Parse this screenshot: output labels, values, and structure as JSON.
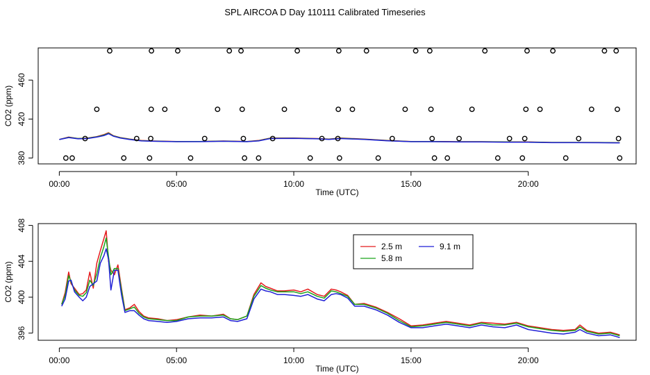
{
  "title": "SPL AIRCOA D  Day 110111  Calibrated Timeseries",
  "chart_data": [
    {
      "type": "line",
      "panel": "top",
      "xlabel": "Time (UTC)",
      "ylabel": "CO2 (ppm)",
      "xlim": [
        -0.9,
        24.6
      ],
      "ylim": [
        374,
        493
      ],
      "xticks": [
        0,
        5,
        10,
        15,
        20
      ],
      "xtick_labels": [
        "00:00",
        "05:00",
        "10:00",
        "15:00",
        "20:00"
      ],
      "yticks": [
        380,
        420,
        460
      ],
      "ytick_labels": [
        "380",
        "420",
        "460"
      ],
      "series": [
        {
          "name": "2.5 m",
          "color": "#e41a1c",
          "x": [
            0,
            0.4,
            0.8,
            1.2,
            1.6,
            1.9,
            2.1,
            2.3,
            2.6,
            3,
            3.5,
            4,
            5,
            6,
            7,
            8,
            8.5,
            9,
            10,
            11,
            11.5,
            12,
            13,
            14,
            15,
            16,
            17,
            18,
            19,
            20,
            21,
            22,
            23,
            23.9
          ],
          "y": [
            399,
            401.5,
            400,
            400.5,
            402,
            404,
            406,
            403,
            401,
            399.5,
            398,
            397.5,
            397,
            397,
            397.5,
            397,
            398,
            400.5,
            400.5,
            400,
            399.5,
            400.5,
            399.5,
            398,
            397,
            397,
            396.8,
            396.8,
            396.6,
            396.5,
            396,
            396,
            396,
            395.7
          ]
        },
        {
          "name": "5.8 m",
          "color": "#1aa31a",
          "x": [
            0,
            0.4,
            0.8,
            1.2,
            1.6,
            1.9,
            2.1,
            2.3,
            2.6,
            3,
            3.5,
            4,
            5,
            6,
            7,
            8,
            8.5,
            9,
            10,
            11,
            11.5,
            12,
            13,
            14,
            15,
            16,
            17,
            18,
            19,
            20,
            21,
            22,
            23,
            23.9
          ],
          "y": [
            399,
            401.3,
            400,
            400.3,
            401.8,
            403.5,
            405.5,
            402.8,
            400.8,
            399.3,
            397.8,
            397.4,
            396.9,
            397,
            397.4,
            396.9,
            397.8,
            400.3,
            400.4,
            399.9,
            399.3,
            400.3,
            399.3,
            397.9,
            396.9,
            396.9,
            396.7,
            396.7,
            396.5,
            396.4,
            396,
            396,
            395.9,
            395.7
          ]
        },
        {
          "name": "9.1 m",
          "color": "#1f1fd6",
          "x": [
            0,
            0.4,
            0.8,
            1.2,
            1.6,
            1.9,
            2.1,
            2.3,
            2.6,
            3,
            3.5,
            4,
            5,
            6,
            7,
            8,
            8.5,
            9,
            10,
            11,
            11.5,
            12,
            13,
            14,
            15,
            16,
            17,
            18,
            19,
            20,
            21,
            22,
            23,
            23.9
          ],
          "y": [
            399,
            401,
            399.7,
            400,
            401.5,
            403,
            405,
            402.5,
            400.5,
            399,
            397.6,
            397.2,
            396.8,
            396.8,
            397.2,
            396.8,
            397.6,
            400,
            400.2,
            399.7,
            399.1,
            400,
            399.1,
            397.7,
            396.8,
            396.8,
            396.5,
            396.5,
            396.3,
            396.2,
            395.8,
            395.8,
            395.7,
            395.5
          ]
        }
      ],
      "calibration_points": {
        "x": [
          0.28,
          0.55,
          1.1,
          1.6,
          2.15,
          2.75,
          3.3,
          3.85,
          3.9,
          3.92,
          3.93,
          4.5,
          5.05,
          5.6,
          6.2,
          6.75,
          7.25,
          7.75,
          7.8,
          7.85,
          7.9,
          8.5,
          9.1,
          9.6,
          10.15,
          10.7,
          11.2,
          11.88,
          11.9,
          11.92,
          11.95,
          12.5,
          13.1,
          13.6,
          14.2,
          14.75,
          15.2,
          15.8,
          15.85,
          15.9,
          16.0,
          16.55,
          17.05,
          17.6,
          18.15,
          18.7,
          19.2,
          19.75,
          19.85,
          19.9,
          19.95,
          20.5,
          21.05,
          21.6,
          22.15,
          22.7,
          23.25,
          23.75,
          23.8,
          23.85,
          23.9
        ],
        "y": [
          380,
          380,
          400,
          430,
          490,
          380,
          400,
          380,
          400,
          430,
          490,
          430,
          490,
          380,
          400,
          430,
          490,
          490,
          430,
          400,
          380,
          380,
          400,
          430,
          490,
          380,
          400,
          400,
          430,
          490,
          380,
          430,
          490,
          380,
          400,
          430,
          490,
          490,
          430,
          400,
          380,
          380,
          400,
          430,
          490,
          380,
          400,
          380,
          400,
          430,
          490,
          430,
          490,
          380,
          400,
          430,
          490,
          490,
          430,
          400,
          380
        ]
      }
    },
    {
      "type": "line",
      "panel": "bottom",
      "xlabel": "Time (UTC)",
      "ylabel": "CO2 (ppm)",
      "xlim": [
        -0.9,
        24.6
      ],
      "ylim": [
        395.2,
        408.2
      ],
      "xticks": [
        0,
        5,
        10,
        15,
        20
      ],
      "xtick_labels": [
        "00:00",
        "05:00",
        "10:00",
        "15:00",
        "20:00"
      ],
      "yticks": [
        396,
        400,
        404,
        408
      ],
      "ytick_labels": [
        "396",
        "400",
        "404",
        "408"
      ],
      "legend": {
        "position": "top-center",
        "entries": [
          "2.5 m",
          "5.8 m",
          "9.1 m"
        ]
      },
      "series": [
        {
          "name": "2.5 m",
          "color": "#e41a1c",
          "x": [
            0.1,
            0.25,
            0.4,
            0.5,
            0.65,
            0.85,
            1.0,
            1.15,
            1.3,
            1.45,
            1.6,
            1.75,
            1.9,
            2.0,
            2.1,
            2.2,
            2.35,
            2.5,
            2.65,
            2.8,
            3.0,
            3.2,
            3.4,
            3.6,
            3.8,
            4.2,
            4.6,
            5.0,
            5.5,
            6.0,
            6.5,
            7.0,
            7.3,
            7.6,
            8.0,
            8.3,
            8.6,
            8.8,
            9.0,
            9.3,
            9.6,
            10.0,
            10.3,
            10.6,
            11.0,
            11.3,
            11.6,
            11.8,
            12.0,
            12.3,
            12.6,
            13.0,
            13.5,
            14.0,
            14.5,
            15.0,
            15.5,
            16.0,
            16.5,
            17.0,
            17.5,
            18.0,
            18.5,
            19.0,
            19.5,
            20.0,
            20.5,
            21.0,
            21.5,
            22.0,
            22.2,
            22.5,
            23.0,
            23.5,
            23.9
          ],
          "y": [
            399.2,
            400.5,
            402.8,
            401.5,
            401,
            400.3,
            400.4,
            400.8,
            402.8,
            401,
            403.8,
            405.2,
            406.5,
            407.4,
            404,
            403,
            402.5,
            403.6,
            401,
            398.6,
            398.8,
            399.2,
            398.4,
            397.9,
            397.7,
            397.6,
            397.4,
            397.5,
            397.8,
            398,
            397.9,
            398.1,
            397.6,
            397.5,
            397.9,
            400.3,
            401.6,
            401.2,
            401,
            400.7,
            400.7,
            400.8,
            400.6,
            400.9,
            400.3,
            400.1,
            400.9,
            400.8,
            400.6,
            400.2,
            399.2,
            399.3,
            398.9,
            398.3,
            397.6,
            396.8,
            396.9,
            397.1,
            397.3,
            397.1,
            396.9,
            397.2,
            397.1,
            397.0,
            397.2,
            396.8,
            396.6,
            396.4,
            396.3,
            396.4,
            396.9,
            396.3,
            396.0,
            396.1,
            395.8
          ]
        },
        {
          "name": "5.8 m",
          "color": "#1aa31a",
          "x": [
            0.1,
            0.25,
            0.4,
            0.5,
            0.65,
            0.85,
            1.0,
            1.15,
            1.3,
            1.45,
            1.6,
            1.75,
            1.9,
            2.0,
            2.1,
            2.2,
            2.35,
            2.5,
            2.65,
            2.8,
            3.0,
            3.2,
            3.4,
            3.6,
            3.8,
            4.2,
            4.6,
            5.0,
            5.5,
            6.0,
            6.5,
            7.0,
            7.3,
            7.6,
            8.0,
            8.3,
            8.6,
            8.8,
            9.0,
            9.3,
            9.6,
            10.0,
            10.3,
            10.6,
            11.0,
            11.3,
            11.6,
            11.8,
            12.0,
            12.3,
            12.6,
            13.0,
            13.5,
            14.0,
            14.5,
            15.0,
            15.5,
            16.0,
            16.5,
            17.0,
            17.5,
            18.0,
            18.5,
            19.0,
            19.5,
            20.0,
            20.5,
            21.0,
            21.5,
            22.0,
            22.2,
            22.5,
            23.0,
            23.5,
            23.9
          ],
          "y": [
            399.2,
            400.2,
            402.4,
            401.7,
            400.8,
            400.2,
            400.1,
            400.5,
            401.9,
            401.3,
            402.6,
            404.4,
            405.6,
            406.6,
            404.5,
            402.5,
            403.2,
            403.2,
            400.8,
            398.5,
            398.7,
            398.9,
            398.2,
            397.8,
            397.6,
            397.5,
            397.4,
            397.4,
            397.8,
            397.9,
            397.9,
            398.0,
            397.6,
            397.5,
            397.9,
            400.1,
            401.3,
            401.0,
            400.8,
            400.6,
            400.6,
            400.6,
            400.4,
            400.6,
            400.1,
            399.9,
            400.7,
            400.6,
            400.4,
            400.1,
            399.2,
            399.2,
            398.8,
            398.2,
            397.4,
            396.7,
            396.8,
            397.0,
            397.2,
            397.0,
            396.8,
            397.1,
            396.9,
            396.9,
            397.1,
            396.7,
            396.5,
            396.3,
            396.2,
            396.3,
            396.7,
            396.2,
            395.9,
            396.0,
            395.7
          ]
        },
        {
          "name": "9.1 m",
          "color": "#1f1fd6",
          "x": [
            0.1,
            0.25,
            0.4,
            0.5,
            0.65,
            0.85,
            1.0,
            1.15,
            1.3,
            1.45,
            1.6,
            1.75,
            1.9,
            2.0,
            2.1,
            2.2,
            2.35,
            2.5,
            2.65,
            2.8,
            3.0,
            3.2,
            3.4,
            3.6,
            3.8,
            4.2,
            4.6,
            5.0,
            5.5,
            6.0,
            6.5,
            7.0,
            7.3,
            7.6,
            8.0,
            8.3,
            8.6,
            8.8,
            9.0,
            9.3,
            9.6,
            10.0,
            10.3,
            10.6,
            11.0,
            11.3,
            11.6,
            11.8,
            12.0,
            12.3,
            12.6,
            13.0,
            13.5,
            14.0,
            14.5,
            15.0,
            15.5,
            16.0,
            16.5,
            17.0,
            17.5,
            18.0,
            18.5,
            19.0,
            19.5,
            20.0,
            20.5,
            21.0,
            21.5,
            22.0,
            22.2,
            22.5,
            23.0,
            23.5,
            23.9
          ],
          "y": [
            399.0,
            399.8,
            401.8,
            401.9,
            400.6,
            400.0,
            399.6,
            400.0,
            401.2,
            401.5,
            401.8,
            403.8,
            404.6,
            405.4,
            404.2,
            400.8,
            403.0,
            403.0,
            400.3,
            398.3,
            398.5,
            398.5,
            398.0,
            397.6,
            397.4,
            397.3,
            397.2,
            397.3,
            397.6,
            397.7,
            397.7,
            397.8,
            397.4,
            397.3,
            397.6,
            399.8,
            400.9,
            400.7,
            400.6,
            400.3,
            400.3,
            400.2,
            400.1,
            400.3,
            399.8,
            399.6,
            400.3,
            400.4,
            400.3,
            399.9,
            399.0,
            399.0,
            398.6,
            398.0,
            397.2,
            396.6,
            396.6,
            396.8,
            397.0,
            396.8,
            396.6,
            396.9,
            396.7,
            396.6,
            396.9,
            396.4,
            396.2,
            396.0,
            395.9,
            396.1,
            396.4,
            396.0,
            395.7,
            395.8,
            395.5
          ]
        }
      ]
    }
  ]
}
